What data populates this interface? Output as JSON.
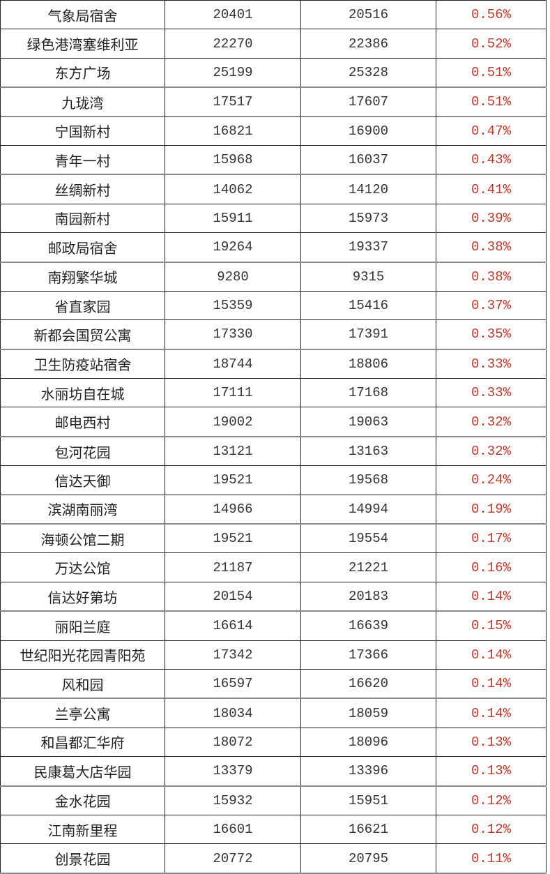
{
  "colors": {
    "text": "#222222",
    "percent": "#c0392b"
  },
  "table": {
    "rows": [
      [
        "气象局宿舍",
        "20401",
        "20516",
        "0.56%"
      ],
      [
        "绿色港湾塞维利亚",
        "22270",
        "22386",
        "0.52%"
      ],
      [
        "东方广场",
        "25199",
        "25328",
        "0.51%"
      ],
      [
        "九珑湾",
        "17517",
        "17607",
        "0.51%"
      ],
      [
        "宁国新村",
        "16821",
        "16900",
        "0.47%"
      ],
      [
        "青年一村",
        "15968",
        "16037",
        "0.43%"
      ],
      [
        "丝绸新村",
        "14062",
        "14120",
        "0.41%"
      ],
      [
        "南园新村",
        "15911",
        "15973",
        "0.39%"
      ],
      [
        "邮政局宿舍",
        "19264",
        "19337",
        "0.38%"
      ],
      [
        "南翔繁华城",
        "9280",
        "9315",
        "0.38%"
      ],
      [
        "省直家园",
        "15359",
        "15416",
        "0.37%"
      ],
      [
        "新都会国贸公寓",
        "17330",
        "17391",
        "0.35%"
      ],
      [
        "卫生防疫站宿舍",
        "18744",
        "18806",
        "0.33%"
      ],
      [
        "水丽坊自在城",
        "17111",
        "17168",
        "0.33%"
      ],
      [
        "邮电西村",
        "19002",
        "19063",
        "0.32%"
      ],
      [
        "包河花园",
        "13121",
        "13163",
        "0.32%"
      ],
      [
        "信达天御",
        "19521",
        "19568",
        "0.24%"
      ],
      [
        "滨湖南丽湾",
        "14966",
        "14994",
        "0.19%"
      ],
      [
        "海顿公馆二期",
        "19521",
        "19554",
        "0.17%"
      ],
      [
        "万达公馆",
        "21187",
        "21221",
        "0.16%"
      ],
      [
        "信达好第坊",
        "20154",
        "20183",
        "0.14%"
      ],
      [
        "丽阳兰庭",
        "16614",
        "16639",
        "0.15%"
      ],
      [
        "世纪阳光花园青阳苑",
        "17342",
        "17366",
        "0.14%"
      ],
      [
        "风和园",
        "16597",
        "16620",
        "0.14%"
      ],
      [
        "兰亭公寓",
        "18034",
        "18059",
        "0.14%"
      ],
      [
        "和昌都汇华府",
        "18072",
        "18096",
        "0.13%"
      ],
      [
        "民康葛大店华园",
        "13379",
        "13396",
        "0.13%"
      ],
      [
        "金水花园",
        "15932",
        "15951",
        "0.12%"
      ],
      [
        "江南新里程",
        "16601",
        "16621",
        "0.12%"
      ],
      [
        "创景花园",
        "20772",
        "20795",
        "0.11%"
      ]
    ]
  }
}
